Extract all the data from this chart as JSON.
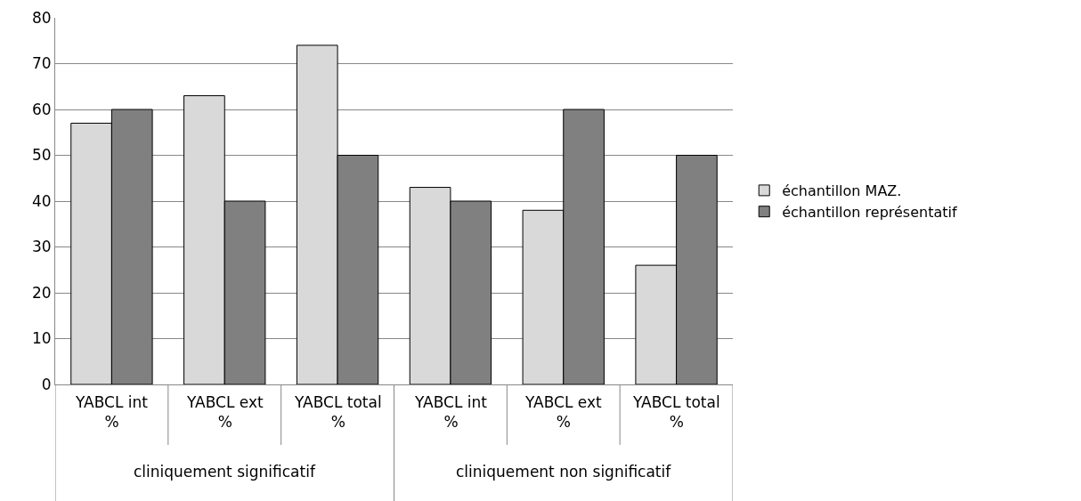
{
  "chart_data": {
    "type": "bar",
    "categories": [
      "YABCL int %",
      "YABCL ext %",
      "YABCL total %",
      "YABCL int %",
      "YABCL ext %",
      "YABCL total %"
    ],
    "annotations": [
      "cliniquement significatif",
      "cliniquement non significatif"
    ],
    "series": [
      {
        "name": "échantillon MAZ.",
        "color": "#d9d9d9",
        "values": [
          57,
          63,
          74,
          43,
          38,
          26
        ]
      },
      {
        "name": "échantillon représentatif",
        "color": "#808080",
        "values": [
          60,
          40,
          50,
          40,
          60,
          50
        ]
      }
    ],
    "ylim": [
      0,
      80
    ],
    "yticks": [
      0,
      10,
      20,
      30,
      40,
      50,
      60,
      70,
      80
    ],
    "grid": "y",
    "legend": "right"
  }
}
